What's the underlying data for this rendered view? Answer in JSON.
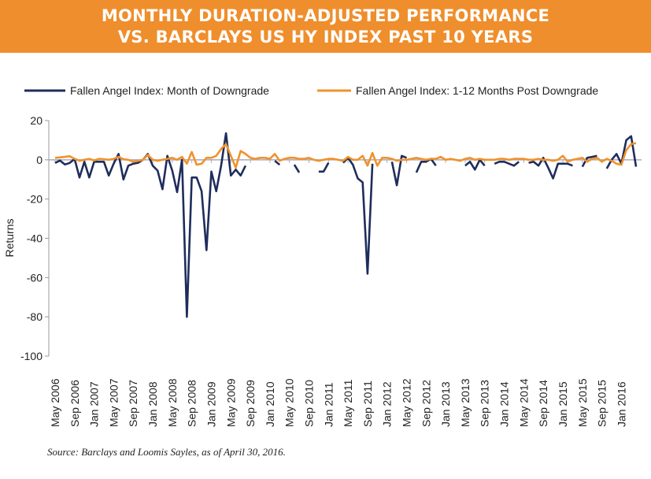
{
  "header": {
    "title_line1": "MONTHLY DURATION-ADJUSTED PERFORMANCE",
    "title_line2": "VS. BARCLAYS US HY INDEX PAST 10 YEARS"
  },
  "source": "Source: Barclays and Loomis Sayles, as of April 30, 2016.",
  "chart_data": {
    "type": "line",
    "title": "MONTHLY DURATION-ADJUSTED PERFORMANCE VS. BARCLAYS US HY INDEX PAST 10 YEARS",
    "xlabel": "",
    "ylabel": "Returns",
    "ylim": [
      -100,
      20
    ],
    "yticks": [
      20,
      0,
      -20,
      -40,
      -60,
      -80,
      -100
    ],
    "grid": false,
    "legend": "top",
    "x_tick_labels": [
      "May 2006",
      "Sep 2006",
      "Jan 2007",
      "May 2007",
      "Sep 2007",
      "Jan 2008",
      "May 2008",
      "Sep 2008",
      "Jan 2009",
      "May 2009",
      "Sep 2009",
      "Jan 2010",
      "May 2010",
      "Sep 2010",
      "Jan 2011",
      "May 2011",
      "Sep 2011",
      "Jan 2012",
      "May 2012",
      "Sep 2012",
      "Jan 2013",
      "May 2013",
      "Sep 2013",
      "Jan 2014",
      "May 2014",
      "Sep 2014",
      "Jan 2015",
      "May 2015",
      "Sep 2015",
      "Jan 2016"
    ],
    "x": [
      "2006-05",
      "2006-06",
      "2006-07",
      "2006-08",
      "2006-09",
      "2006-10",
      "2006-11",
      "2006-12",
      "2007-01",
      "2007-02",
      "2007-03",
      "2007-04",
      "2007-05",
      "2007-06",
      "2007-07",
      "2007-08",
      "2007-09",
      "2007-10",
      "2007-11",
      "2007-12",
      "2008-01",
      "2008-02",
      "2008-03",
      "2008-04",
      "2008-05",
      "2008-06",
      "2008-07",
      "2008-08",
      "2008-09",
      "2008-10",
      "2008-11",
      "2008-12",
      "2009-01",
      "2009-02",
      "2009-03",
      "2009-04",
      "2009-05",
      "2009-06",
      "2009-07",
      "2009-08",
      "2009-09",
      "2009-10",
      "2009-11",
      "2009-12",
      "2010-01",
      "2010-02",
      "2010-03",
      "2010-04",
      "2010-05",
      "2010-06",
      "2010-07",
      "2010-08",
      "2010-09",
      "2010-10",
      "2010-11",
      "2010-12",
      "2011-01",
      "2011-02",
      "2011-03",
      "2011-04",
      "2011-05",
      "2011-06",
      "2011-07",
      "2011-08",
      "2011-09",
      "2011-10",
      "2011-11",
      "2011-12",
      "2012-01",
      "2012-02",
      "2012-03",
      "2012-04",
      "2012-05",
      "2012-06",
      "2012-07",
      "2012-08",
      "2012-09",
      "2012-10",
      "2012-11",
      "2012-12",
      "2013-01",
      "2013-02",
      "2013-03",
      "2013-04",
      "2013-05",
      "2013-06",
      "2013-07",
      "2013-08",
      "2013-09",
      "2013-10",
      "2013-11",
      "2013-12",
      "2014-01",
      "2014-02",
      "2014-03",
      "2014-04",
      "2014-05",
      "2014-06",
      "2014-07",
      "2014-08",
      "2014-09",
      "2014-10",
      "2014-11",
      "2014-12",
      "2015-01",
      "2015-02",
      "2015-03",
      "2015-04",
      "2015-05",
      "2015-06",
      "2015-07",
      "2015-08",
      "2015-09",
      "2015-10",
      "2015-11",
      "2015-12",
      "2016-01",
      "2016-02",
      "2016-03",
      "2016-04"
    ],
    "series": [
      {
        "name": "Fallen Angel Index: Month of Downgrade",
        "color": "#1F2D5C",
        "values": [
          -1.6,
          -0.4,
          -2.4,
          -1.6,
          0.4,
          -9,
          -1,
          -9,
          -1,
          -1,
          -1,
          -8,
          -2,
          3,
          -10,
          -3,
          -2,
          -1.5,
          0,
          3,
          -3,
          -5.5,
          -15,
          2,
          -5.5,
          -16.5,
          0,
          -80,
          -9,
          -9,
          -16,
          -46,
          -6,
          -16,
          -3,
          13.5,
          -8,
          -5,
          -8,
          -3,
          null,
          null,
          null,
          null,
          null,
          -0.5,
          -2.5,
          null,
          null,
          -2.5,
          -6.5,
          null,
          null,
          null,
          -6,
          -6,
          -1.5,
          null,
          null,
          -1.5,
          1,
          -2.5,
          -9.5,
          -11.5,
          -58,
          -2,
          null,
          null,
          null,
          -1,
          -13,
          2,
          1,
          null,
          -6.5,
          -1,
          -1,
          0.5,
          -3,
          null,
          null,
          null,
          null,
          null,
          -3,
          -1,
          -5,
          0,
          -3,
          null,
          -2,
          -1,
          -1,
          -2,
          -3,
          -1,
          null,
          -1.5,
          -1,
          -3,
          1,
          -4,
          -9.5,
          -2,
          -2,
          -2,
          -3,
          null,
          -3.5,
          1,
          1.5,
          2,
          null,
          -4.5,
          0,
          3,
          -2,
          10,
          12,
          -3.5
        ]
      },
      {
        "name": "Fallen Angel Index: 1-12 Months Post Downgrade",
        "color": "#F0922B",
        "values": [
          1,
          1.2,
          1.5,
          1.8,
          0.5,
          -0.5,
          0,
          0.5,
          -0.3,
          0.5,
          0.3,
          0,
          0.5,
          1.5,
          0.3,
          0,
          -1,
          -0.5,
          0,
          2.5,
          0,
          -0.5,
          0,
          0.5,
          1,
          0,
          1.5,
          -2,
          4,
          -2.5,
          -2,
          1,
          1,
          2,
          5.5,
          8,
          2,
          -4,
          4.5,
          3,
          1,
          0.5,
          1,
          1,
          0.5,
          3,
          -0.5,
          0.5,
          1,
          1,
          0.5,
          0.5,
          1,
          0,
          -0.5,
          0,
          0.5,
          0.5,
          0,
          -0.5,
          1.5,
          0,
          0,
          2,
          -3,
          3.5,
          -3,
          1,
          1,
          0.5,
          -0.5,
          0,
          0,
          0.5,
          1,
          0.5,
          0,
          0.5,
          0.5,
          1.5,
          0,
          0.5,
          0,
          -0.5,
          0.5,
          1,
          0,
          0.5,
          0,
          0,
          0,
          0.5,
          0.5,
          0,
          0.5,
          0.5,
          0.5,
          0,
          0,
          0.5,
          0,
          0,
          -0.5,
          0,
          2,
          -1,
          0,
          0.5,
          1,
          -1,
          0.5,
          1,
          -1,
          0.5,
          -0.5,
          -2,
          -2.5,
          5,
          8,
          8.5
        ]
      }
    ]
  }
}
